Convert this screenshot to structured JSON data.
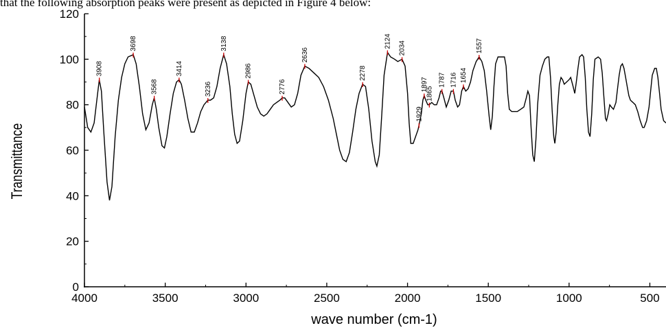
{
  "caption": "that the following absorption peaks were present as depicted in Figure 4 below:",
  "chart_data": {
    "type": "line",
    "title": "",
    "xlabel": "wave number (cm-1)",
    "ylabel": "Transmittance",
    "xlim": [
      4000,
      400
    ],
    "ylim": [
      0,
      120
    ],
    "x_ticks": [
      "4000",
      "3500",
      "3000",
      "2500",
      "2000",
      "1500",
      "1000",
      "500"
    ],
    "y_ticks": [
      "0",
      "20",
      "40",
      "60",
      "80",
      "100",
      "120"
    ],
    "series": [
      {
        "points": [
          [
            4000,
            79
          ],
          [
            3980,
            70
          ],
          [
            3960,
            68
          ],
          [
            3940,
            72
          ],
          [
            3920,
            84
          ],
          [
            3908,
            91
          ],
          [
            3895,
            86
          ],
          [
            3880,
            68
          ],
          [
            3860,
            46
          ],
          [
            3845,
            38
          ],
          [
            3830,
            44
          ],
          [
            3810,
            66
          ],
          [
            3790,
            82
          ],
          [
            3770,
            92
          ],
          [
            3750,
            98
          ],
          [
            3730,
            101
          ],
          [
            3698,
            102
          ],
          [
            3680,
            98
          ],
          [
            3660,
            88
          ],
          [
            3640,
            76
          ],
          [
            3620,
            69
          ],
          [
            3600,
            72
          ],
          [
            3580,
            80
          ],
          [
            3568,
            83
          ],
          [
            3555,
            78
          ],
          [
            3540,
            70
          ],
          [
            3520,
            62
          ],
          [
            3505,
            61
          ],
          [
            3490,
            66
          ],
          [
            3470,
            76
          ],
          [
            3450,
            85
          ],
          [
            3430,
            90
          ],
          [
            3414,
            91
          ],
          [
            3400,
            89
          ],
          [
            3380,
            82
          ],
          [
            3360,
            74
          ],
          [
            3340,
            68
          ],
          [
            3320,
            68
          ],
          [
            3300,
            72
          ],
          [
            3280,
            77
          ],
          [
            3260,
            80
          ],
          [
            3236,
            82
          ],
          [
            3220,
            82
          ],
          [
            3200,
            83
          ],
          [
            3180,
            88
          ],
          [
            3160,
            96
          ],
          [
            3138,
            102
          ],
          [
            3120,
            98
          ],
          [
            3100,
            88
          ],
          [
            3085,
            76
          ],
          [
            3070,
            67
          ],
          [
            3055,
            63
          ],
          [
            3040,
            64
          ],
          [
            3020,
            73
          ],
          [
            3000,
            85
          ],
          [
            2986,
            90
          ],
          [
            2970,
            89
          ],
          [
            2950,
            84
          ],
          [
            2930,
            79
          ],
          [
            2910,
            76
          ],
          [
            2890,
            75
          ],
          [
            2870,
            76
          ],
          [
            2850,
            78
          ],
          [
            2830,
            80
          ],
          [
            2810,
            81
          ],
          [
            2790,
            82
          ],
          [
            2776,
            83
          ],
          [
            2760,
            83
          ],
          [
            2740,
            81
          ],
          [
            2720,
            79
          ],
          [
            2700,
            80
          ],
          [
            2680,
            85
          ],
          [
            2660,
            93
          ],
          [
            2636,
            97
          ],
          [
            2610,
            96
          ],
          [
            2580,
            94
          ],
          [
            2550,
            92
          ],
          [
            2520,
            88
          ],
          [
            2490,
            82
          ],
          [
            2460,
            74
          ],
          [
            2440,
            67
          ],
          [
            2420,
            60
          ],
          [
            2400,
            56
          ],
          [
            2380,
            55
          ],
          [
            2360,
            59
          ],
          [
            2340,
            68
          ],
          [
            2320,
            78
          ],
          [
            2300,
            85
          ],
          [
            2278,
            89
          ],
          [
            2260,
            88
          ],
          [
            2240,
            78
          ],
          [
            2220,
            64
          ],
          [
            2200,
            55
          ],
          [
            2190,
            53
          ],
          [
            2175,
            58
          ],
          [
            2160,
            75
          ],
          [
            2145,
            93
          ],
          [
            2124,
            103
          ],
          [
            2105,
            101
          ],
          [
            2080,
            100
          ],
          [
            2060,
            99
          ],
          [
            2034,
            100
          ],
          [
            2015,
            97
          ],
          [
            2000,
            85
          ],
          [
            1990,
            72
          ],
          [
            1980,
            63
          ],
          [
            1965,
            63
          ],
          [
            1950,
            66
          ],
          [
            1935,
            69
          ],
          [
            1929,
            71
          ],
          [
            1915,
            76
          ],
          [
            1905,
            82
          ],
          [
            1897,
            84
          ],
          [
            1887,
            82
          ],
          [
            1875,
            80
          ],
          [
            1865,
            80
          ],
          [
            1850,
            81
          ],
          [
            1835,
            80
          ],
          [
            1820,
            80
          ],
          [
            1805,
            83
          ],
          [
            1795,
            86
          ],
          [
            1787,
            86
          ],
          [
            1775,
            83
          ],
          [
            1760,
            79
          ],
          [
            1745,
            82
          ],
          [
            1730,
            86
          ],
          [
            1716,
            86
          ],
          [
            1705,
            82
          ],
          [
            1690,
            79
          ],
          [
            1678,
            80
          ],
          [
            1665,
            86
          ],
          [
            1654,
            88
          ],
          [
            1640,
            86
          ],
          [
            1625,
            87
          ],
          [
            1610,
            90
          ],
          [
            1595,
            95
          ],
          [
            1575,
            99
          ],
          [
            1557,
            101
          ],
          [
            1540,
            99
          ],
          [
            1525,
            95
          ],
          [
            1510,
            86
          ],
          [
            1495,
            75
          ],
          [
            1485,
            69
          ],
          [
            1475,
            75
          ],
          [
            1465,
            88
          ],
          [
            1455,
            98
          ],
          [
            1440,
            101
          ],
          [
            1420,
            101
          ],
          [
            1400,
            101
          ],
          [
            1390,
            97
          ],
          [
            1380,
            85
          ],
          [
            1370,
            78
          ],
          [
            1355,
            77
          ],
          [
            1340,
            77
          ],
          [
            1320,
            77
          ],
          [
            1300,
            78
          ],
          [
            1280,
            79
          ],
          [
            1265,
            83
          ],
          [
            1255,
            86
          ],
          [
            1245,
            84
          ],
          [
            1235,
            70
          ],
          [
            1225,
            58
          ],
          [
            1215,
            55
          ],
          [
            1205,
            65
          ],
          [
            1195,
            80
          ],
          [
            1180,
            93
          ],
          [
            1165,
            97
          ],
          [
            1150,
            100
          ],
          [
            1135,
            101
          ],
          [
            1125,
            101
          ],
          [
            1115,
            92
          ],
          [
            1105,
            78
          ],
          [
            1095,
            66
          ],
          [
            1088,
            63
          ],
          [
            1080,
            68
          ],
          [
            1070,
            80
          ],
          [
            1060,
            89
          ],
          [
            1050,
            92
          ],
          [
            1040,
            91
          ],
          [
            1030,
            89
          ],
          [
            1015,
            90
          ],
          [
            1000,
            91
          ],
          [
            990,
            92
          ],
          [
            975,
            88
          ],
          [
            965,
            85
          ],
          [
            955,
            90
          ],
          [
            945,
            96
          ],
          [
            935,
            101
          ],
          [
            920,
            102
          ],
          [
            910,
            101
          ],
          [
            900,
            92
          ],
          [
            890,
            78
          ],
          [
            880,
            68
          ],
          [
            870,
            66
          ],
          [
            860,
            76
          ],
          [
            850,
            91
          ],
          [
            840,
            100
          ],
          [
            820,
            101
          ],
          [
            805,
            100
          ],
          [
            795,
            94
          ],
          [
            785,
            84
          ],
          [
            775,
            74
          ],
          [
            768,
            73
          ],
          [
            758,
            76
          ],
          [
            748,
            80
          ],
          [
            738,
            79
          ],
          [
            725,
            78
          ],
          [
            710,
            81
          ],
          [
            700,
            87
          ],
          [
            690,
            93
          ],
          [
            680,
            97
          ],
          [
            670,
            98
          ],
          [
            660,
            96
          ],
          [
            650,
            92
          ],
          [
            640,
            88
          ],
          [
            630,
            84
          ],
          [
            620,
            82
          ],
          [
            605,
            81
          ],
          [
            590,
            80
          ],
          [
            575,
            77
          ],
          [
            560,
            73
          ],
          [
            545,
            70
          ],
          [
            535,
            70
          ],
          [
            520,
            73
          ],
          [
            505,
            79
          ],
          [
            495,
            86
          ],
          [
            485,
            93
          ],
          [
            470,
            96
          ],
          [
            460,
            96
          ],
          [
            450,
            92
          ],
          [
            440,
            85
          ],
          [
            430,
            78
          ],
          [
            415,
            73
          ],
          [
            400,
            72
          ]
        ]
      }
    ],
    "peaks": [
      {
        "x": 3908,
        "y": 91,
        "label": "3908"
      },
      {
        "x": 3698,
        "y": 102,
        "label": "3698"
      },
      {
        "x": 3568,
        "y": 83,
        "label": "3568"
      },
      {
        "x": 3414,
        "y": 91,
        "label": "3414"
      },
      {
        "x": 3236,
        "y": 82,
        "label": "3236"
      },
      {
        "x": 3138,
        "y": 102,
        "label": "3138"
      },
      {
        "x": 2986,
        "y": 90,
        "label": "2986"
      },
      {
        "x": 2776,
        "y": 83,
        "label": "2776"
      },
      {
        "x": 2636,
        "y": 97,
        "label": "2636"
      },
      {
        "x": 2278,
        "y": 89,
        "label": "2278"
      },
      {
        "x": 2124,
        "y": 103,
        "label": "2124"
      },
      {
        "x": 2034,
        "y": 100,
        "label": "2034"
      },
      {
        "x": 1929,
        "y": 71,
        "label": "1929"
      },
      {
        "x": 1897,
        "y": 84,
        "label": "1897"
      },
      {
        "x": 1865,
        "y": 80,
        "label": "1865"
      },
      {
        "x": 1787,
        "y": 86,
        "label": "1787"
      },
      {
        "x": 1716,
        "y": 86,
        "label": "1716"
      },
      {
        "x": 1654,
        "y": 88,
        "label": "1654"
      },
      {
        "x": 1557,
        "y": 101,
        "label": "1557"
      }
    ],
    "grid": false,
    "legend": "none",
    "line_color": "#000000",
    "peak_marker_color": "#cc0000"
  }
}
